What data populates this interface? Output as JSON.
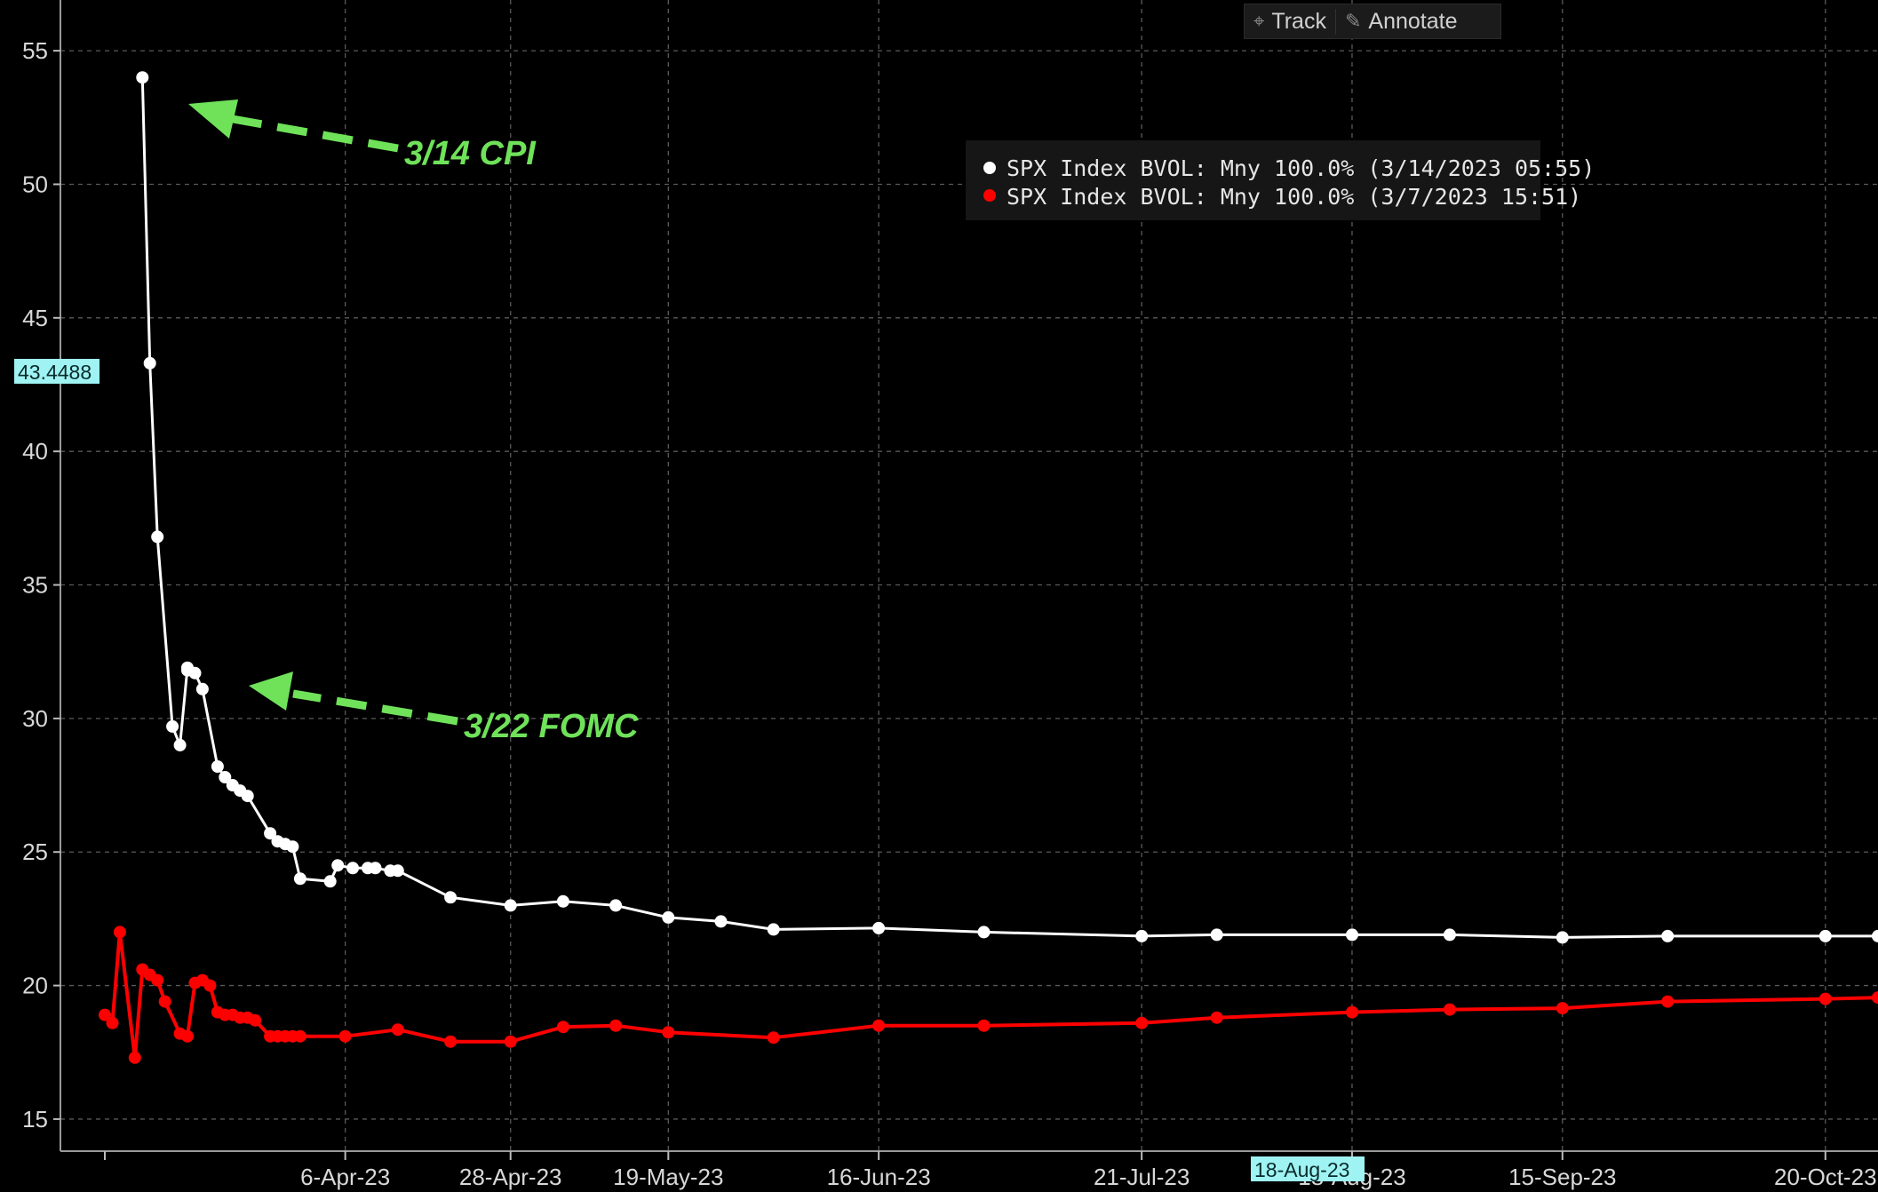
{
  "toolbar": {
    "track_label": "Track",
    "annotate_label": "Annotate",
    "track_icon": "crosshair-icon",
    "annotate_icon": "pencil-icon"
  },
  "badges": {
    "y_value": "43.4488",
    "x_value": "18-Aug-23"
  },
  "annotations": {
    "cpi": "3/14 CPI",
    "fomc": "3/22 FOMC"
  },
  "colors": {
    "background": "#000000",
    "series_white": "#ffffff",
    "series_red": "#ff0000",
    "annotation": "#6fe25a",
    "badge": "#9ff3f3"
  },
  "chart_data": {
    "type": "line",
    "title": "",
    "xlabel": "",
    "ylabel": "",
    "ylim": [
      13.8,
      56.9
    ],
    "xlim": [
      "2023-03-05",
      "2023-10-27"
    ],
    "yticks": [
      15,
      20,
      25,
      30,
      35,
      40,
      45,
      50,
      55
    ],
    "xticks": [
      {
        "date": "2023-04-06",
        "label": "6-Apr-23"
      },
      {
        "date": "2023-04-28",
        "label": "28-Apr-23"
      },
      {
        "date": "2023-05-19",
        "label": "19-May-23"
      },
      {
        "date": "2023-06-16",
        "label": "16-Jun-23"
      },
      {
        "date": "2023-07-21",
        "label": "21-Jul-23"
      },
      {
        "date": "2023-08-18",
        "label": "18-Aug-23"
      },
      {
        "date": "2023-09-15",
        "label": "15-Sep-23"
      },
      {
        "date": "2023-10-20",
        "label": "20-Oct-23"
      }
    ],
    "grid": true,
    "legend_position": "top-center",
    "series": [
      {
        "name": "SPX Index BVOL: Mny 100.0% (3/14/2023 05:55)",
        "color": "#ffffff",
        "x": [
          "2023-03-10",
          "2023-03-11",
          "2023-03-12",
          "2023-03-14",
          "2023-03-15",
          "2023-03-16",
          "2023-03-16",
          "2023-03-17",
          "2023-03-18",
          "2023-03-20",
          "2023-03-21",
          "2023-03-22",
          "2023-03-23",
          "2023-03-24",
          "2023-03-27",
          "2023-03-28",
          "2023-03-29",
          "2023-03-30",
          "2023-03-31",
          "2023-04-04",
          "2023-04-05",
          "2023-04-07",
          "2023-04-09",
          "2023-04-10",
          "2023-04-12",
          "2023-04-13",
          "2023-04-20",
          "2023-04-28",
          "2023-05-05",
          "2023-05-12",
          "2023-05-19",
          "2023-05-26",
          "2023-06-02",
          "2023-06-16",
          "2023-06-30",
          "2023-07-21",
          "2023-07-31",
          "2023-08-18",
          "2023-08-31",
          "2023-09-15",
          "2023-09-29",
          "2023-10-20",
          "2023-10-27"
        ],
        "y": [
          54.0,
          43.3,
          36.8,
          29.7,
          29.0,
          31.9,
          31.8,
          31.7,
          31.1,
          28.2,
          27.8,
          27.5,
          27.3,
          27.1,
          25.7,
          25.4,
          25.3,
          25.2,
          24.0,
          23.9,
          24.5,
          24.4,
          24.4,
          24.4,
          24.3,
          24.3,
          23.3,
          23.0,
          23.15,
          23.0,
          22.55,
          22.4,
          22.1,
          22.15,
          22.0,
          21.85,
          21.9,
          21.9,
          21.9,
          21.8,
          21.85,
          21.85,
          21.85
        ]
      },
      {
        "name": "SPX Index BVOL: Mny 100.0% (3/7/2023 15:51)",
        "color": "#ff0000",
        "x": [
          "2023-03-05",
          "2023-03-06",
          "2023-03-07",
          "2023-03-09",
          "2023-03-10",
          "2023-03-11",
          "2023-03-12",
          "2023-03-13",
          "2023-03-15",
          "2023-03-16",
          "2023-03-17",
          "2023-03-18",
          "2023-03-19",
          "2023-03-20",
          "2023-03-21",
          "2023-03-22",
          "2023-03-23",
          "2023-03-24",
          "2023-03-25",
          "2023-03-27",
          "2023-03-28",
          "2023-03-29",
          "2023-03-30",
          "2023-03-31",
          "2023-04-06",
          "2023-04-13",
          "2023-04-20",
          "2023-04-28",
          "2023-05-05",
          "2023-05-12",
          "2023-05-19",
          "2023-06-02",
          "2023-06-16",
          "2023-06-30",
          "2023-07-21",
          "2023-07-31",
          "2023-08-18",
          "2023-08-31",
          "2023-09-15",
          "2023-09-29",
          "2023-10-20",
          "2023-10-27"
        ],
        "y": [
          18.9,
          18.6,
          22.0,
          17.3,
          20.6,
          20.4,
          20.2,
          19.4,
          18.2,
          18.1,
          20.1,
          20.2,
          20.0,
          19.0,
          18.9,
          18.9,
          18.8,
          18.8,
          18.7,
          18.1,
          18.1,
          18.1,
          18.1,
          18.1,
          18.1,
          18.35,
          17.9,
          17.9,
          18.45,
          18.5,
          18.25,
          18.05,
          18.5,
          18.5,
          18.6,
          18.8,
          19.0,
          19.1,
          19.15,
          19.4,
          19.5,
          19.55
        ]
      }
    ]
  }
}
